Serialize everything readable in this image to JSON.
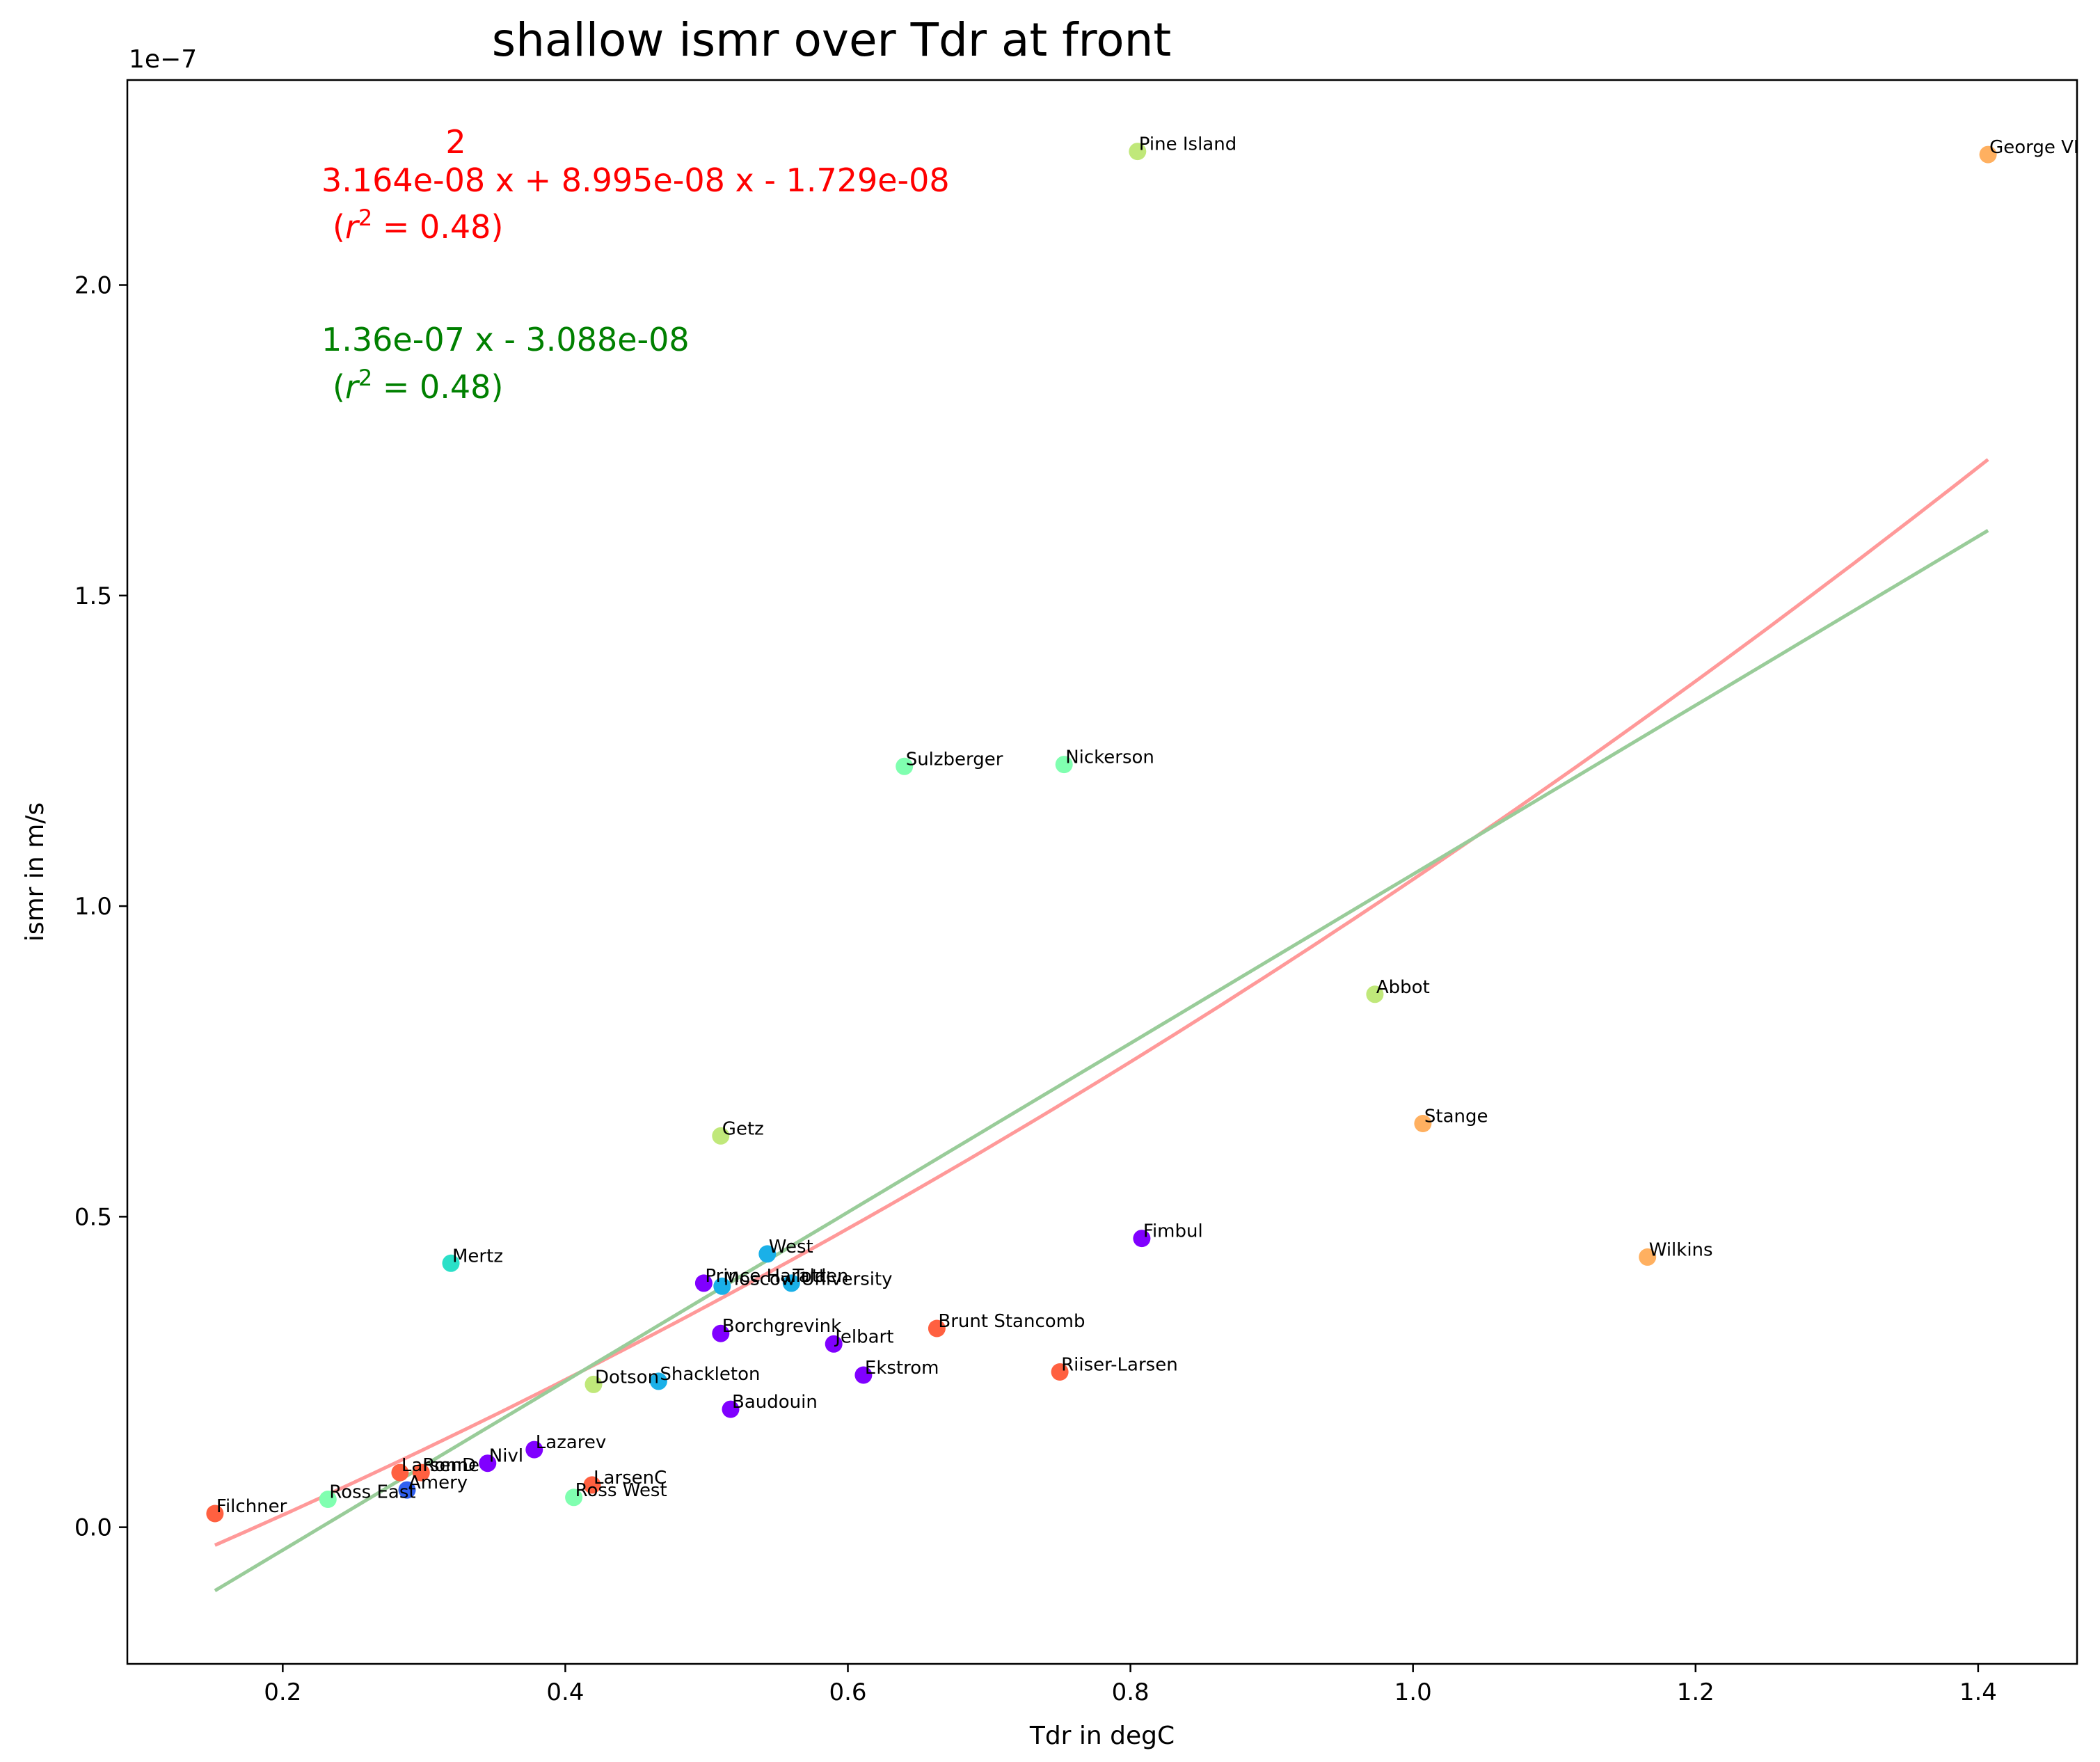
{
  "chart_data": {
    "type": "scatter",
    "title": "shallow ismr over Tdr at front",
    "xlabel": "Tdr in degC",
    "ylabel": "ismr in m/s",
    "y_multiplier_label": "1e−7",
    "xlim": [
      0.09,
      1.47
    ],
    "ylim": [
      -0.22,
      2.33
    ],
    "xticks": [
      0.2,
      0.4,
      0.6,
      0.8,
      1.0,
      1.2,
      1.4
    ],
    "xtick_labels": [
      "0.2",
      "0.4",
      "0.6",
      "0.8",
      "1.0",
      "1.2",
      "1.4"
    ],
    "yticks": [
      0.0,
      0.5,
      1.0,
      1.5,
      2.0
    ],
    "ytick_labels": [
      "0.0",
      "0.5",
      "1.0",
      "1.5",
      "2.0"
    ],
    "grid": false,
    "points": [
      {
        "label": "Pine Island",
        "x": 0.805,
        "y": 2.215,
        "color": "#c0e87a"
      },
      {
        "label": "George VI",
        "x": 1.407,
        "y": 2.21,
        "color": "#ffb060"
      },
      {
        "label": "Sulzberger",
        "x": 0.64,
        "y": 1.225,
        "color": "#80ffb0"
      },
      {
        "label": "Nickerson",
        "x": 0.753,
        "y": 1.228,
        "color": "#80ffb0"
      },
      {
        "label": "Abbot",
        "x": 0.973,
        "y": 0.858,
        "color": "#c0e87a"
      },
      {
        "label": "Stange",
        "x": 1.007,
        "y": 0.65,
        "color": "#ffb060"
      },
      {
        "label": "Getz",
        "x": 0.51,
        "y": 0.63,
        "color": "#c0e87a"
      },
      {
        "label": "Fimbul",
        "x": 0.808,
        "y": 0.465,
        "color": "#8000ff"
      },
      {
        "label": "Wilkins",
        "x": 1.166,
        "y": 0.435,
        "color": "#ffb060"
      },
      {
        "label": "Mertz",
        "x": 0.319,
        "y": 0.425,
        "color": "#2be0c8"
      },
      {
        "label": "West",
        "x": 0.543,
        "y": 0.44,
        "color": "#1ab0e8"
      },
      {
        "label": "Prince Harald",
        "x": 0.498,
        "y": 0.393,
        "color": "#8000ff"
      },
      {
        "label": "Moscow University",
        "x": 0.511,
        "y": 0.388,
        "color": "#1ab0e8"
      },
      {
        "label": "Totten",
        "x": 0.56,
        "y": 0.393,
        "color": "#1ab0e8"
      },
      {
        "label": "Borchgrevink",
        "x": 0.51,
        "y": 0.312,
        "color": "#8000ff"
      },
      {
        "label": "Brunt Stancomb",
        "x": 0.663,
        "y": 0.32,
        "color": "#ff6040"
      },
      {
        "label": "Jelbart",
        "x": 0.59,
        "y": 0.295,
        "color": "#8000ff"
      },
      {
        "label": "Riiser-Larsen",
        "x": 0.75,
        "y": 0.25,
        "color": "#ff6040"
      },
      {
        "label": "Ekstrom",
        "x": 0.611,
        "y": 0.245,
        "color": "#8000ff"
      },
      {
        "label": "Shackleton",
        "x": 0.466,
        "y": 0.235,
        "color": "#1ab0e8"
      },
      {
        "label": "Dotson",
        "x": 0.42,
        "y": 0.23,
        "color": "#c0e87a"
      },
      {
        "label": "Baudouin",
        "x": 0.517,
        "y": 0.19,
        "color": "#8000ff"
      },
      {
        "label": "Lazarev",
        "x": 0.378,
        "y": 0.125,
        "color": "#8000ff"
      },
      {
        "label": "Nivl",
        "x": 0.345,
        "y": 0.103,
        "color": "#8000ff"
      },
      {
        "label": "LarsenD",
        "x": 0.283,
        "y": 0.088,
        "color": "#ff6040"
      },
      {
        "label": "Ronne",
        "x": 0.298,
        "y": 0.088,
        "color": "#ff6040"
      },
      {
        "label": "LarsenC",
        "x": 0.419,
        "y": 0.068,
        "color": "#ff6040"
      },
      {
        "label": "Amery",
        "x": 0.288,
        "y": 0.06,
        "color": "#3060f0"
      },
      {
        "label": "Ross East",
        "x": 0.232,
        "y": 0.045,
        "color": "#80ffb0"
      },
      {
        "label": "Ross West",
        "x": 0.406,
        "y": 0.048,
        "color": "#80ffb0"
      },
      {
        "label": "Filchner",
        "x": 0.152,
        "y": 0.022,
        "color": "#ff6040"
      }
    ],
    "fits": [
      {
        "kind": "quadratic",
        "coefficients": [
          0.3164,
          0.8995,
          -0.1729
        ],
        "color": "#ff9999",
        "x_range": [
          0.152,
          1.407
        ]
      },
      {
        "kind": "linear",
        "coefficients": [
          1.36,
          -0.3088
        ],
        "color": "#99cc99",
        "x_range": [
          0.152,
          1.407
        ]
      }
    ],
    "annotations": {
      "quad_exponent": "2",
      "quad_equation": "3.164e-08 x + 8.995e-08 x - 1.729e-08",
      "quad_r2_value": " = 0.48)",
      "lin_equation": "1.36e-07 x - 3.088e-08",
      "lin_r2_value": " = 0.48)",
      "r2_open": "(",
      "r2_symbol": "r",
      "r2_exponent": "2",
      "quad_color": "#ff0000",
      "lin_color": "#008000"
    }
  }
}
